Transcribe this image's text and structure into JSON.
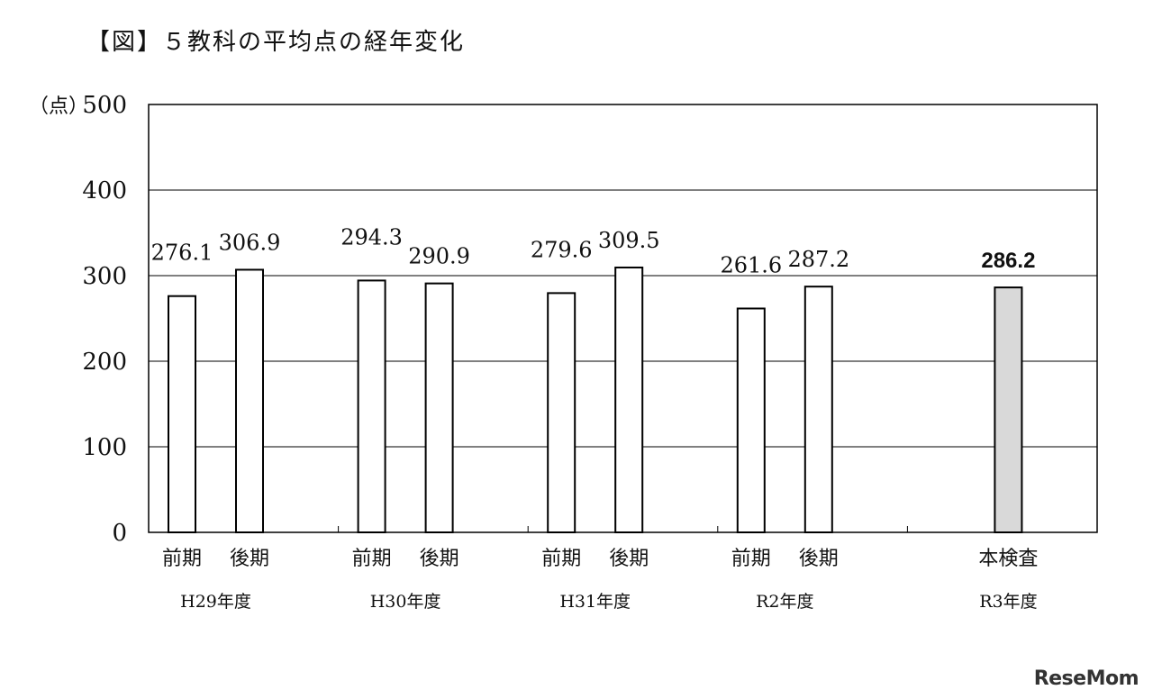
{
  "title": "【図】５教科の平均点の経年変化",
  "watermark": "ReseMom",
  "chart_data": {
    "type": "bar",
    "title": "【図】５教科の平均点の経年変化",
    "ylabel": "（点）",
    "ylim": [
      0,
      500
    ],
    "yticks": [
      "0",
      "100",
      "200",
      "300",
      "400",
      "500"
    ],
    "ytick_values": [
      0,
      100,
      200,
      300,
      400,
      500
    ],
    "grid": true,
    "groups": [
      {
        "name": "H29年度",
        "bars": [
          {
            "category": "前期",
            "value": 276.1,
            "label": "276.1"
          },
          {
            "category": "後期",
            "value": 306.9,
            "label": "306.9"
          }
        ]
      },
      {
        "name": "H30年度",
        "bars": [
          {
            "category": "前期",
            "value": 294.3,
            "label": "294.3"
          },
          {
            "category": "後期",
            "value": 290.9,
            "label": "290.9"
          }
        ]
      },
      {
        "name": "H31年度",
        "bars": [
          {
            "category": "前期",
            "value": 279.6,
            "label": "279.6"
          },
          {
            "category": "後期",
            "value": 309.5,
            "label": "309.5"
          }
        ]
      },
      {
        "name": "R2年度",
        "bars": [
          {
            "category": "前期",
            "value": 261.6,
            "label": "261.6"
          },
          {
            "category": "後期",
            "value": 287.2,
            "label": "287.2"
          }
        ]
      },
      {
        "name": "R3年度",
        "bars": [
          {
            "category": "本検査",
            "value": 286.2,
            "label": "286.2",
            "highlight": true
          }
        ]
      }
    ],
    "colors": {
      "bar_fill": "#ffffff",
      "highlight_fill": "#d9d9d9",
      "bar_stroke": "#000000",
      "grid": "#000000"
    }
  }
}
